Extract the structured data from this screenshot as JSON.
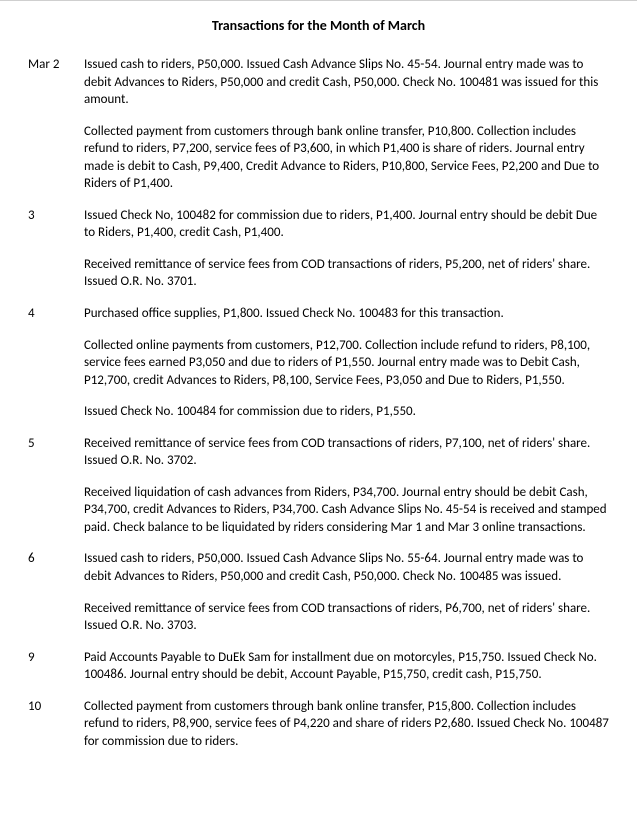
{
  "title": "Transactions for the Month of March",
  "entries": [
    {
      "date": "Mar 2",
      "text": "Issued cash to riders, P50,000.  Issued Cash Advance Slips No. 45-54. Journal entry made was to debit Advances to Riders, P50,000 and credit Cash, P50,000. Check No. 100481 was issued for this amount."
    },
    {
      "date": "",
      "text": "Collected payment from customers through bank online transfer, P10,800. Collection includes refund to riders, P7,200, service fees of P3,600, in which P1,400 is share of riders.  Journal entry made is debit to Cash, P9,400,  Credit Advance to Riders, P10,800, Service Fees, P2,200 and Due to Riders of P1,400."
    },
    {
      "date": "3",
      "text": "Issued Check No, 100482 for commission due to riders, P1,400. Journal entry should be debit Due to Riders, P1,400, credit Cash, P1,400."
    },
    {
      "date": "",
      "text": "Received remittance of service fees from COD transactions of riders, P5,200, net of riders' share. Issued O.R. No. 3701."
    },
    {
      "date": "4",
      "text": "Purchased office supplies, P1,800.  Issued Check No. 100483 for this transaction."
    },
    {
      "date": "",
      "text": "Collected online payments from customers, P12,700.  Collection include refund to riders, P8,100, service fees earned P3,050 and due to riders of P1,550.  Journal entry made was to Debit Cash, P12,700, credit Advances to Riders, P8,100, Service Fees, P3,050 and Due to Riders, P1,550."
    },
    {
      "date": "",
      "text": "Issued Check No. 100484 for commission due to riders, P1,550."
    },
    {
      "date": "5",
      "text": "Received remittance of service fees from COD transactions of riders, P7,100, net of riders' share.  Issued O.R. No. 3702."
    },
    {
      "date": "",
      "text": "Received liquidation of cash advances from Riders, P34,700.  Journal entry should be debit Cash, P34,700, credit Advances to Riders, P34,700. Cash Advance Slips No. 45-54 is received and stamped paid.  Check balance to be liquidated by riders considering Mar 1 and Mar 3 online transactions."
    },
    {
      "date": "6",
      "text": "Issued cash to riders, P50,000.  Issued Cash Advance Slips No. 55-64. Journal entry made was to debit Advances to Riders, P50,000 and credit Cash, P50,000. Check No. 100485 was issued."
    },
    {
      "date": "",
      "text": "Received  remittance of service fees from COD transactions of riders, P6,700, net of riders' share.  Issued O.R. No. 3703."
    },
    {
      "date": "9",
      "text": "Paid Accounts Payable to DuEk Sam for installment due on motorcyles, P15,750.  Issued Check No. 100486. Journal entry should be debit, Account Payable, P15,750, credit cash, P15,750."
    },
    {
      "date": "10",
      "text": "Collected payment from customers through bank online transfer, P15,800. Collection includes refund to riders, P8,900, service fees of P4,220 and share of riders P2,680.  Issued Check No. 100487 for commission due to riders."
    }
  ]
}
